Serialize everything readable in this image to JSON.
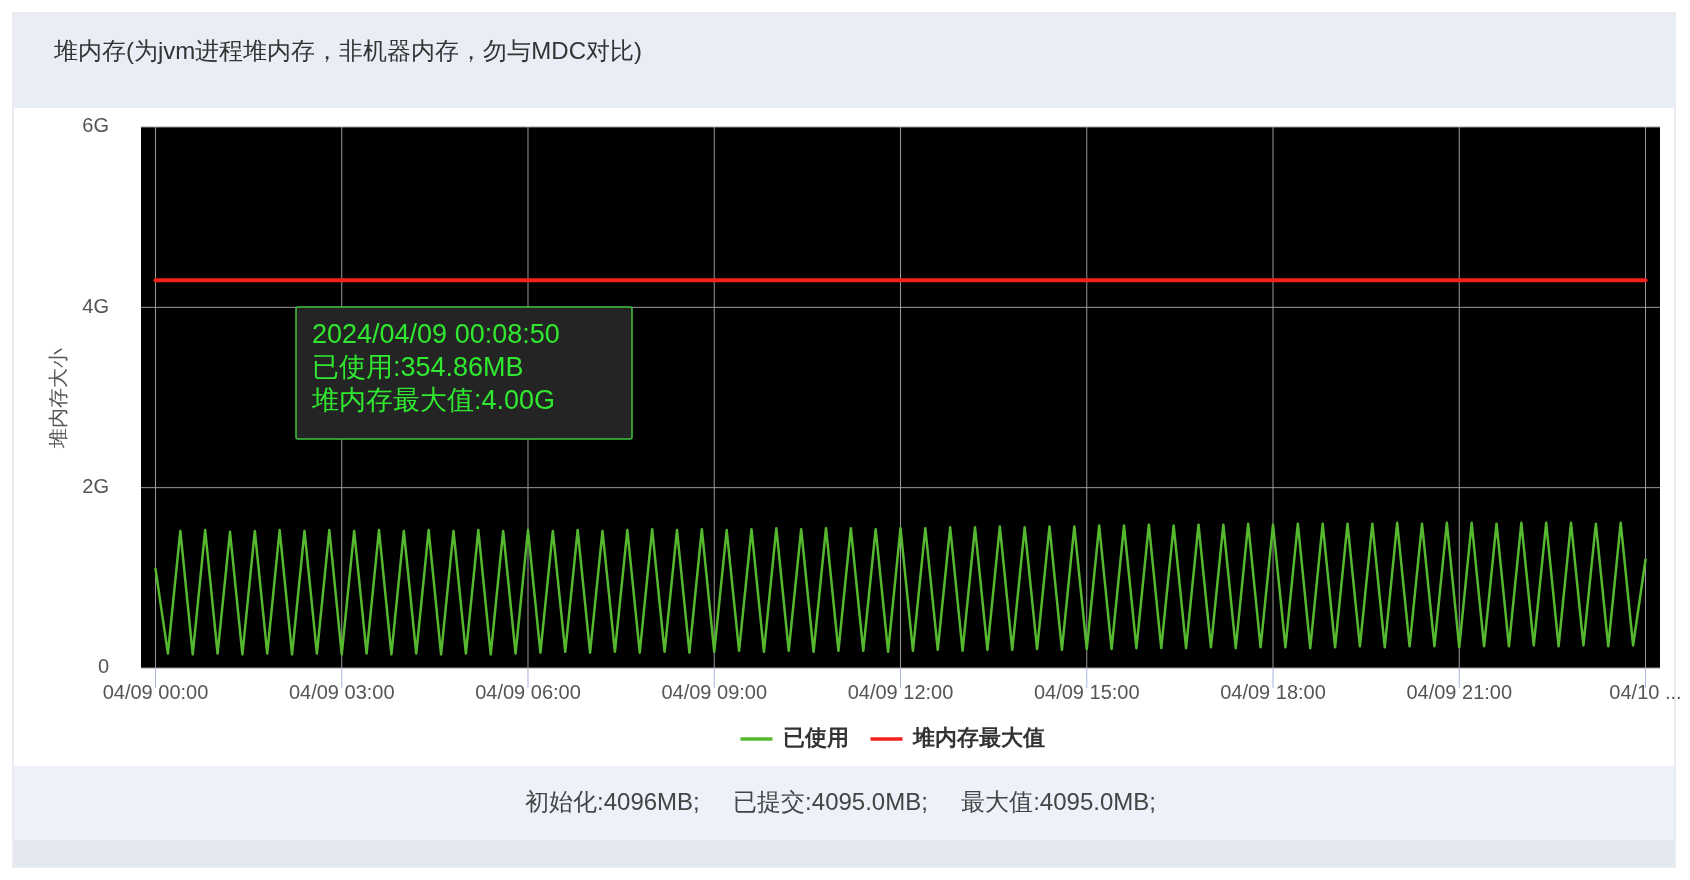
{
  "chart_data": {
    "type": "line",
    "title": "堆内存(为jvm进程堆内存，非机器内存，勿与MDC对比)",
    "ylabel": "堆内存大小",
    "xlim": [
      "2024-04-08T23:46",
      "2024-04-10T00:14"
    ],
    "xticks": [
      {
        "value": "2024-04-09T00:00",
        "label": "04/09 00:00"
      },
      {
        "value": "2024-04-09T03:00",
        "label": "04/09 03:00"
      },
      {
        "value": "2024-04-09T06:00",
        "label": "04/09 06:00"
      },
      {
        "value": "2024-04-09T09:00",
        "label": "04/09 09:00"
      },
      {
        "value": "2024-04-09T12:00",
        "label": "04/09 12:00"
      },
      {
        "value": "2024-04-09T15:00",
        "label": "04/09 15:00"
      },
      {
        "value": "2024-04-09T18:00",
        "label": "04/09 18:00"
      },
      {
        "value": "2024-04-09T21:00",
        "label": "04/09 21:00"
      },
      {
        "value": "2024-04-10T00:00",
        "label": "04/10 ..."
      }
    ],
    "ylim": [
      0,
      6
    ],
    "yticks": [
      {
        "value": 0,
        "label": "0"
      },
      {
        "value": 2,
        "label": "2G"
      },
      {
        "value": 4,
        "label": "4G"
      },
      {
        "value": 6,
        "label": "6G"
      }
    ],
    "grid": true,
    "legend": "bottom",
    "marker": "none",
    "series": [
      {
        "name": "已使用",
        "color": "#55b82f",
        "x": [
          "2024-04-09T00:00",
          "2024-04-09T00:12",
          "2024-04-09T00:24",
          "2024-04-09T00:36",
          "2024-04-09T00:48",
          "2024-04-09T01:00",
          "2024-04-09T01:12",
          "2024-04-09T01:24",
          "2024-04-09T01:36",
          "2024-04-09T01:48",
          "2024-04-09T02:00",
          "2024-04-09T02:12",
          "2024-04-09T02:24",
          "2024-04-09T02:36",
          "2024-04-09T02:48",
          "2024-04-09T03:00",
          "2024-04-09T03:12",
          "2024-04-09T03:24",
          "2024-04-09T03:36",
          "2024-04-09T03:48",
          "2024-04-09T04:00",
          "2024-04-09T04:12",
          "2024-04-09T04:24",
          "2024-04-09T04:36",
          "2024-04-09T04:48",
          "2024-04-09T05:00",
          "2024-04-09T05:12",
          "2024-04-09T05:24",
          "2024-04-09T05:36",
          "2024-04-09T05:48",
          "2024-04-09T06:00",
          "2024-04-09T06:12",
          "2024-04-09T06:24",
          "2024-04-09T06:36",
          "2024-04-09T06:48",
          "2024-04-09T07:00",
          "2024-04-09T07:12",
          "2024-04-09T07:24",
          "2024-04-09T07:36",
          "2024-04-09T07:48",
          "2024-04-09T08:00",
          "2024-04-09T08:12",
          "2024-04-09T08:24",
          "2024-04-09T08:36",
          "2024-04-09T08:48",
          "2024-04-09T09:00",
          "2024-04-09T09:12",
          "2024-04-09T09:24",
          "2024-04-09T09:36",
          "2024-04-09T09:48",
          "2024-04-09T10:00",
          "2024-04-09T10:12",
          "2024-04-09T10:24",
          "2024-04-09T10:36",
          "2024-04-09T10:48",
          "2024-04-09T11:00",
          "2024-04-09T11:12",
          "2024-04-09T11:24",
          "2024-04-09T11:36",
          "2024-04-09T11:48",
          "2024-04-09T12:00",
          "2024-04-09T12:12",
          "2024-04-09T12:24",
          "2024-04-09T12:36",
          "2024-04-09T12:48",
          "2024-04-09T13:00",
          "2024-04-09T13:12",
          "2024-04-09T13:24",
          "2024-04-09T13:36",
          "2024-04-09T13:48",
          "2024-04-09T14:00",
          "2024-04-09T14:12",
          "2024-04-09T14:24",
          "2024-04-09T14:36",
          "2024-04-09T14:48",
          "2024-04-09T15:00",
          "2024-04-09T15:12",
          "2024-04-09T15:24",
          "2024-04-09T15:36",
          "2024-04-09T15:48",
          "2024-04-09T16:00",
          "2024-04-09T16:12",
          "2024-04-09T16:24",
          "2024-04-09T16:36",
          "2024-04-09T16:48",
          "2024-04-09T17:00",
          "2024-04-09T17:12",
          "2024-04-09T17:24",
          "2024-04-09T17:36",
          "2024-04-09T17:48",
          "2024-04-09T18:00",
          "2024-04-09T18:12",
          "2024-04-09T18:24",
          "2024-04-09T18:36",
          "2024-04-09T18:48",
          "2024-04-09T19:00",
          "2024-04-09T19:12",
          "2024-04-09T19:24",
          "2024-04-09T19:36",
          "2024-04-09T19:48",
          "2024-04-09T20:00",
          "2024-04-09T20:12",
          "2024-04-09T20:24",
          "2024-04-09T20:36",
          "2024-04-09T20:48",
          "2024-04-09T21:00",
          "2024-04-09T21:12",
          "2024-04-09T21:24",
          "2024-04-09T21:36",
          "2024-04-09T21:48",
          "2024-04-09T22:00",
          "2024-04-09T22:12",
          "2024-04-09T22:24",
          "2024-04-09T22:36",
          "2024-04-09T22:48",
          "2024-04-09T23:00",
          "2024-04-09T23:12",
          "2024-04-09T23:24",
          "2024-04-09T23:36",
          "2024-04-09T23:48",
          "2024-04-10T00:00"
        ],
        "values": [
          1.1,
          0.16,
          1.52,
          0.15,
          1.53,
          0.16,
          1.51,
          0.15,
          1.52,
          0.16,
          1.53,
          0.15,
          1.52,
          0.16,
          1.53,
          0.15,
          1.52,
          0.16,
          1.53,
          0.15,
          1.52,
          0.16,
          1.53,
          0.15,
          1.52,
          0.16,
          1.53,
          0.15,
          1.52,
          0.16,
          1.53,
          0.17,
          1.52,
          0.18,
          1.53,
          0.17,
          1.52,
          0.18,
          1.53,
          0.17,
          1.54,
          0.18,
          1.53,
          0.17,
          1.54,
          0.18,
          1.53,
          0.19,
          1.54,
          0.18,
          1.55,
          0.19,
          1.54,
          0.18,
          1.55,
          0.19,
          1.55,
          0.19,
          1.54,
          0.18,
          1.55,
          0.19,
          1.55,
          0.2,
          1.56,
          0.19,
          1.56,
          0.2,
          1.57,
          0.2,
          1.56,
          0.21,
          1.57,
          0.2,
          1.57,
          0.21,
          1.58,
          0.21,
          1.58,
          0.22,
          1.59,
          0.22,
          1.58,
          0.22,
          1.59,
          0.23,
          1.59,
          0.22,
          1.6,
          0.23,
          1.59,
          0.23,
          1.6,
          0.22,
          1.6,
          0.23,
          1.6,
          0.24,
          1.6,
          0.23,
          1.61,
          0.24,
          1.6,
          0.24,
          1.61,
          0.23,
          1.61,
          0.24,
          1.6,
          0.24,
          1.61,
          0.25,
          1.61,
          0.24,
          1.61,
          0.25,
          1.6,
          0.24,
          1.61,
          0.25,
          1.2
        ]
      },
      {
        "name": "堆内存最大值",
        "color": "#f5221c",
        "x": [
          "2024-04-09T00:00",
          "2024-04-10T00:00"
        ],
        "values": [
          4.3,
          4.3
        ]
      }
    ],
    "annotations": [
      "2024/04/09 00:08:50\n已使用:354.86MB\n堆内存最大值:4.00G",
      "初始化:4096MB;     已提交:4095.0MB;     最大值:4095.0MB;"
    ]
  }
}
